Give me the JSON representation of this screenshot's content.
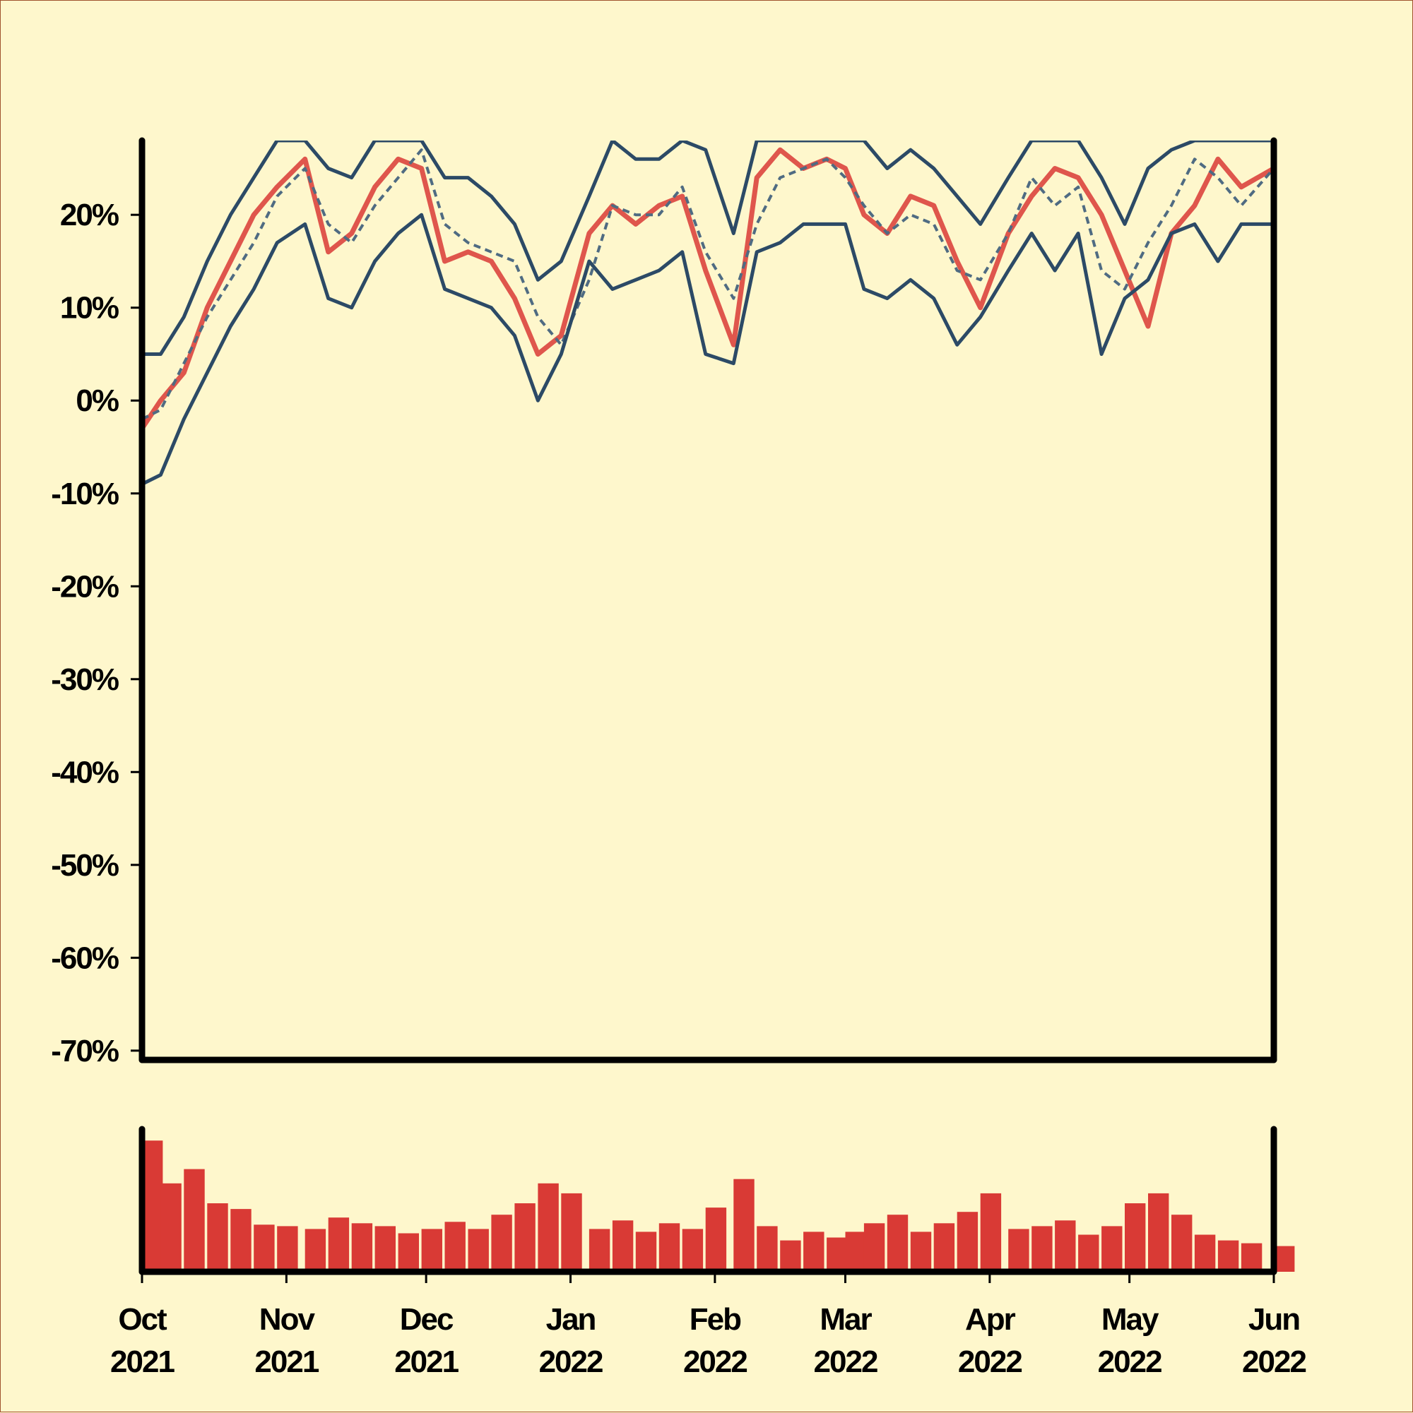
{
  "chart_data": {
    "type": "line",
    "y_tick_labels": [
      "20%",
      "10%",
      "0%",
      "-10%",
      "-20%",
      "-30%",
      "-40%",
      "-50%",
      "-60%",
      "-70%"
    ],
    "y_ticks": [
      20,
      10,
      0,
      -10,
      -20,
      -30,
      -40,
      -50,
      -60,
      -70
    ],
    "ylim": [
      -71,
      28
    ],
    "x_tick_labels": [
      {
        "month": "Oct",
        "year": "2021",
        "date": "2021-10-01"
      },
      {
        "month": "Nov",
        "year": "2021",
        "date": "2021-11-01"
      },
      {
        "month": "Dec",
        "year": "2021",
        "date": "2021-12-01"
      },
      {
        "month": "Jan",
        "year": "2022",
        "date": "2022-01-01"
      },
      {
        "month": "Feb",
        "year": "2022",
        "date": "2022-02-01"
      },
      {
        "month": "Mar",
        "year": "2022",
        "date": "2022-03-01"
      },
      {
        "month": "Apr",
        "year": "2022",
        "date": "2022-04-01"
      },
      {
        "month": "May",
        "year": "2022",
        "date": "2022-05-01"
      },
      {
        "month": "Jun",
        "year": "2022",
        "date": "2022-06-01"
      }
    ],
    "xlim": [
      "2021-10-01",
      "2022-06-01"
    ],
    "series": [
      {
        "role": "value",
        "color": "#d93a35",
        "x": [
          "2021-10-01",
          "2021-10-05",
          "2021-10-10",
          "2021-10-15",
          "2021-10-20",
          "2021-10-25",
          "2021-10-30",
          "2021-11-05",
          "2021-11-10",
          "2021-11-15",
          "2021-11-20",
          "2021-11-25",
          "2021-11-30",
          "2021-12-05",
          "2021-12-10",
          "2021-12-15",
          "2021-12-20",
          "2021-12-25",
          "2021-12-30",
          "2022-01-05",
          "2022-01-10",
          "2022-01-15",
          "2022-01-20",
          "2022-01-25",
          "2022-01-30",
          "2022-02-05",
          "2022-02-10",
          "2022-02-15",
          "2022-02-20",
          "2022-02-25",
          "2022-03-01",
          "2022-03-05",
          "2022-03-10",
          "2022-03-15",
          "2022-03-20",
          "2022-03-25",
          "2022-03-30",
          "2022-04-05",
          "2022-04-10",
          "2022-04-15",
          "2022-04-20",
          "2022-04-25",
          "2022-04-30",
          "2022-05-05",
          "2022-05-10",
          "2022-05-15",
          "2022-05-20",
          "2022-05-25",
          "2022-06-01"
        ],
        "values": [
          -3,
          0,
          3,
          10,
          15,
          20,
          23,
          26,
          16,
          18,
          23,
          26,
          25,
          15,
          16,
          15,
          11,
          5,
          7,
          18,
          21,
          19,
          21,
          22,
          14,
          6,
          24,
          27,
          25,
          26,
          25,
          20,
          18,
          22,
          21,
          15,
          10,
          18,
          22,
          25,
          24,
          20,
          14,
          8,
          18,
          21,
          26,
          23,
          25
        ]
      },
      {
        "role": "moving-average",
        "style": "dashed",
        "color": "#4f6b82",
        "x": [
          "2021-10-01",
          "2021-10-05",
          "2021-10-10",
          "2021-10-15",
          "2021-10-20",
          "2021-10-25",
          "2021-10-30",
          "2021-11-05",
          "2021-11-10",
          "2021-11-15",
          "2021-11-20",
          "2021-11-25",
          "2021-11-30",
          "2021-12-05",
          "2021-12-10",
          "2021-12-15",
          "2021-12-20",
          "2021-12-25",
          "2021-12-30",
          "2022-01-05",
          "2022-01-10",
          "2022-01-15",
          "2022-01-20",
          "2022-01-25",
          "2022-01-30",
          "2022-02-05",
          "2022-02-10",
          "2022-02-15",
          "2022-02-20",
          "2022-02-25",
          "2022-03-01",
          "2022-03-05",
          "2022-03-10",
          "2022-03-15",
          "2022-03-20",
          "2022-03-25",
          "2022-03-30",
          "2022-04-05",
          "2022-04-10",
          "2022-04-15",
          "2022-04-20",
          "2022-04-25",
          "2022-04-30",
          "2022-05-05",
          "2022-05-10",
          "2022-05-15",
          "2022-05-20",
          "2022-05-25",
          "2022-06-01"
        ],
        "values": [
          -2,
          -1,
          4,
          9,
          13,
          17,
          22,
          25,
          19,
          17,
          21,
          24,
          27,
          19,
          17,
          16,
          15,
          9,
          6,
          13,
          21,
          20,
          20,
          23,
          16,
          11,
          19,
          24,
          25,
          26,
          24,
          21,
          18,
          20,
          19,
          14,
          13,
          18,
          24,
          21,
          23,
          14,
          12,
          17,
          21,
          26,
          24,
          21,
          25
        ]
      },
      {
        "role": "upper-band",
        "color": "#2c4a66",
        "x": [
          "2021-10-01",
          "2021-10-05",
          "2021-10-10",
          "2021-10-15",
          "2021-10-20",
          "2021-10-25",
          "2021-10-30",
          "2021-11-05",
          "2021-11-10",
          "2021-11-15",
          "2021-11-20",
          "2021-11-25",
          "2021-11-30",
          "2021-12-05",
          "2021-12-10",
          "2021-12-15",
          "2021-12-20",
          "2021-12-25",
          "2021-12-30",
          "2022-01-05",
          "2022-01-10",
          "2022-01-15",
          "2022-01-20",
          "2022-01-25",
          "2022-01-30",
          "2022-02-05",
          "2022-02-10",
          "2022-02-15",
          "2022-02-20",
          "2022-02-25",
          "2022-03-01",
          "2022-03-05",
          "2022-03-10",
          "2022-03-15",
          "2022-03-20",
          "2022-03-25",
          "2022-03-30",
          "2022-04-05",
          "2022-04-10",
          "2022-04-15",
          "2022-04-20",
          "2022-04-25",
          "2022-04-30",
          "2022-05-05",
          "2022-05-10",
          "2022-05-15",
          "2022-05-20",
          "2022-05-25",
          "2022-06-01"
        ],
        "values": [
          5,
          5,
          9,
          15,
          20,
          24,
          28,
          28,
          25,
          24,
          28,
          28,
          28,
          24,
          24,
          22,
          19,
          13,
          15,
          22,
          28,
          26,
          26,
          28,
          27,
          18,
          28,
          28,
          28,
          28,
          28,
          28,
          25,
          27,
          25,
          22,
          19,
          24,
          28,
          28,
          28,
          24,
          19,
          25,
          27,
          28,
          28,
          28,
          28
        ]
      },
      {
        "role": "lower-band",
        "color": "#2c4a66",
        "x": [
          "2021-10-01",
          "2021-10-05",
          "2021-10-10",
          "2021-10-15",
          "2021-10-20",
          "2021-10-25",
          "2021-10-30",
          "2021-11-05",
          "2021-11-10",
          "2021-11-15",
          "2021-11-20",
          "2021-11-25",
          "2021-11-30",
          "2021-12-05",
          "2021-12-10",
          "2021-12-15",
          "2021-12-20",
          "2021-12-25",
          "2021-12-30",
          "2022-01-05",
          "2022-01-10",
          "2022-01-15",
          "2022-01-20",
          "2022-01-25",
          "2022-01-30",
          "2022-02-05",
          "2022-02-10",
          "2022-02-15",
          "2022-02-20",
          "2022-02-25",
          "2022-03-01",
          "2022-03-05",
          "2022-03-10",
          "2022-03-15",
          "2022-03-20",
          "2022-03-25",
          "2022-03-30",
          "2022-04-05",
          "2022-04-10",
          "2022-04-15",
          "2022-04-20",
          "2022-04-25",
          "2022-04-30",
          "2022-05-05",
          "2022-05-10",
          "2022-05-15",
          "2022-05-20",
          "2022-05-25",
          "2022-06-01"
        ],
        "values": [
          -9,
          -8,
          -2,
          3,
          8,
          12,
          17,
          19,
          11,
          10,
          15,
          18,
          20,
          12,
          11,
          10,
          7,
          0,
          5,
          15,
          12,
          13,
          14,
          16,
          5,
          4,
          16,
          17,
          19,
          19,
          19,
          12,
          11,
          13,
          11,
          6,
          9,
          14,
          18,
          14,
          18,
          5,
          11,
          13,
          18,
          19,
          15,
          19,
          19
        ]
      }
    ],
    "volume": {
      "color": "#d93a35",
      "x": [
        "2021-10-01",
        "2021-10-05",
        "2021-10-10",
        "2021-10-15",
        "2021-10-20",
        "2021-10-25",
        "2021-10-30",
        "2021-11-05",
        "2021-11-10",
        "2021-11-15",
        "2021-11-20",
        "2021-11-25",
        "2021-11-30",
        "2021-12-05",
        "2021-12-10",
        "2021-12-15",
        "2021-12-20",
        "2021-12-25",
        "2021-12-30",
        "2022-01-05",
        "2022-01-10",
        "2022-01-15",
        "2022-01-20",
        "2022-01-25",
        "2022-01-30",
        "2022-02-05",
        "2022-02-10",
        "2022-02-15",
        "2022-02-20",
        "2022-02-25",
        "2022-03-01",
        "2022-03-05",
        "2022-03-10",
        "2022-03-15",
        "2022-03-20",
        "2022-03-25",
        "2022-03-30",
        "2022-04-05",
        "2022-04-10",
        "2022-04-15",
        "2022-04-20",
        "2022-04-25",
        "2022-04-30",
        "2022-05-05",
        "2022-05-10",
        "2022-05-15",
        "2022-05-20",
        "2022-05-25",
        "2022-06-01"
      ],
      "values": [
        0.92,
        0.62,
        0.72,
        0.48,
        0.44,
        0.33,
        0.32,
        0.3,
        0.38,
        0.34,
        0.32,
        0.27,
        0.3,
        0.35,
        0.3,
        0.4,
        0.48,
        0.62,
        0.55,
        0.3,
        0.36,
        0.28,
        0.34,
        0.3,
        0.45,
        0.65,
        0.32,
        0.22,
        0.28,
        0.24,
        0.28,
        0.34,
        0.4,
        0.28,
        0.34,
        0.42,
        0.55,
        0.3,
        0.32,
        0.36,
        0.26,
        0.32,
        0.48,
        0.55,
        0.4,
        0.26,
        0.22,
        0.2,
        0.18
      ]
    }
  }
}
